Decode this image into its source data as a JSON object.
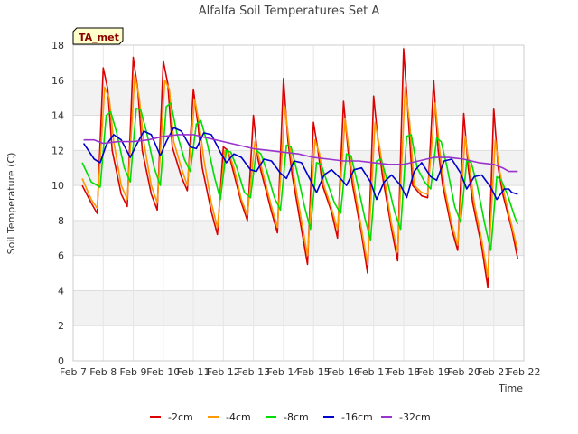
{
  "chart_data": {
    "type": "line",
    "title": "Alfalfa Soil Temperatures Set A",
    "xlabel": "Time",
    "ylabel": "Soil Temperature (C)",
    "site_label": "TA_met",
    "xlim": [
      7,
      22
    ],
    "ylim": [
      0,
      18
    ],
    "x_ticks": [
      7,
      8,
      9,
      10,
      11,
      12,
      13,
      14,
      15,
      16,
      17,
      18,
      19,
      20,
      21,
      22
    ],
    "x_tick_labels": [
      "Feb 7",
      "Feb 8",
      "Feb 9",
      "Feb 10",
      "Feb 11",
      "Feb 12",
      "Feb 13",
      "Feb 14",
      "Feb 15",
      "Feb 16",
      "Feb 17",
      "Feb 18",
      "Feb 19",
      "Feb 20",
      "Feb 21",
      "Feb 22"
    ],
    "y_ticks": [
      0,
      2,
      4,
      6,
      8,
      10,
      12,
      14,
      16,
      18
    ],
    "y_tick_labels": [
      "0",
      "2",
      "4",
      "6",
      "8",
      "10",
      "12",
      "14",
      "16",
      "18"
    ],
    "grid": true,
    "legend_position": "bottom",
    "series": [
      {
        "name": "-2cm",
        "color": "#dd0000",
        "x": [
          7.3,
          7.6,
          7.8,
          8.0,
          8.15,
          8.3,
          8.6,
          8.8,
          9.0,
          9.15,
          9.3,
          9.6,
          9.8,
          10.0,
          10.15,
          10.3,
          10.6,
          10.8,
          11.0,
          11.15,
          11.3,
          11.6,
          11.8,
          12.0,
          12.15,
          12.3,
          12.6,
          12.8,
          13.0,
          13.15,
          13.3,
          13.6,
          13.8,
          14.0,
          14.15,
          14.3,
          14.6,
          14.8,
          15.0,
          15.15,
          15.3,
          15.6,
          15.8,
          16.0,
          16.15,
          16.3,
          16.6,
          16.8,
          17.0,
          17.15,
          17.3,
          17.6,
          17.8,
          18.0,
          18.15,
          18.3,
          18.6,
          18.8,
          19.0,
          19.15,
          19.3,
          19.6,
          19.8,
          20.0,
          20.15,
          20.3,
          20.6,
          20.8,
          21.0,
          21.15,
          21.3,
          21.6,
          21.8
        ],
        "y": [
          10.0,
          9.0,
          8.4,
          16.7,
          15.5,
          12.0,
          9.5,
          8.8,
          17.3,
          15.5,
          12.0,
          9.5,
          8.6,
          17.1,
          15.8,
          12.2,
          10.5,
          9.7,
          15.5,
          13.5,
          11.0,
          8.5,
          7.2,
          12.2,
          12.0,
          11.0,
          9.0,
          8.0,
          14.0,
          11.5,
          10.5,
          8.5,
          7.3,
          16.1,
          12.5,
          10.5,
          7.5,
          5.5,
          13.6,
          12.0,
          10.0,
          8.5,
          7.0,
          14.8,
          12.0,
          10.0,
          7.2,
          5.0,
          15.1,
          12.5,
          10.5,
          7.5,
          5.7,
          17.8,
          14.0,
          10.0,
          9.4,
          9.3,
          16.0,
          12.0,
          10.0,
          7.5,
          6.3,
          14.1,
          11.0,
          9.0,
          6.5,
          4.2,
          14.4,
          11.0,
          9.5,
          7.5,
          5.8
        ]
      },
      {
        "name": "-4cm",
        "color": "#ff9900",
        "x": [
          7.3,
          7.6,
          7.8,
          8.05,
          8.2,
          8.35,
          8.6,
          8.8,
          9.05,
          9.2,
          9.35,
          9.6,
          9.8,
          10.05,
          10.2,
          10.35,
          10.6,
          10.8,
          11.05,
          11.2,
          11.35,
          11.6,
          11.8,
          12.05,
          12.2,
          12.35,
          12.6,
          12.8,
          13.05,
          13.2,
          13.35,
          13.6,
          13.8,
          14.05,
          14.2,
          14.35,
          14.6,
          14.8,
          15.05,
          15.2,
          15.35,
          15.6,
          15.8,
          16.05,
          16.2,
          16.35,
          16.6,
          16.8,
          17.05,
          17.2,
          17.35,
          17.6,
          17.8,
          18.05,
          18.2,
          18.35,
          18.6,
          18.8,
          19.05,
          19.2,
          19.35,
          19.6,
          19.8,
          20.05,
          20.2,
          20.35,
          20.6,
          20.8,
          21.05,
          21.2,
          21.35,
          21.6,
          21.8
        ],
        "y": [
          10.4,
          9.2,
          8.7,
          15.6,
          15.0,
          12.5,
          10.0,
          9.2,
          16.3,
          15.0,
          12.5,
          10.0,
          9.0,
          16.0,
          15.5,
          12.5,
          11.0,
          10.0,
          14.9,
          13.5,
          11.5,
          9.0,
          7.6,
          12.0,
          11.8,
          11.0,
          9.2,
          8.3,
          12.5,
          11.5,
          10.5,
          8.8,
          7.6,
          14.5,
          12.3,
          10.5,
          8.0,
          6.0,
          12.6,
          11.8,
          10.0,
          8.7,
          7.5,
          13.8,
          11.8,
          10.0,
          7.5,
          5.5,
          13.6,
          12.2,
          10.5,
          7.8,
          6.2,
          15.6,
          13.6,
          10.0,
          9.6,
          9.5,
          14.7,
          12.0,
          10.0,
          7.8,
          6.6,
          12.8,
          11.0,
          9.0,
          6.9,
          4.8,
          12.6,
          10.8,
          9.5,
          7.7,
          6.3
        ]
      },
      {
        "name": "-8cm",
        "color": "#00dd00",
        "x": [
          7.3,
          7.6,
          7.9,
          8.1,
          8.25,
          8.45,
          8.7,
          8.9,
          9.1,
          9.25,
          9.45,
          9.7,
          9.9,
          10.1,
          10.25,
          10.45,
          10.7,
          10.9,
          11.1,
          11.25,
          11.45,
          11.7,
          11.9,
          12.1,
          12.25,
          12.45,
          12.7,
          12.9,
          13.1,
          13.25,
          13.45,
          13.7,
          13.9,
          14.1,
          14.25,
          14.45,
          14.7,
          14.9,
          15.1,
          15.25,
          15.45,
          15.7,
          15.9,
          16.1,
          16.25,
          16.45,
          16.7,
          16.9,
          17.1,
          17.25,
          17.45,
          17.7,
          17.9,
          18.1,
          18.25,
          18.45,
          18.7,
          18.9,
          19.1,
          19.25,
          19.45,
          19.7,
          19.9,
          20.1,
          20.25,
          20.45,
          20.7,
          20.9,
          21.1,
          21.25,
          21.45,
          21.7,
          21.8
        ],
        "y": [
          11.3,
          10.2,
          9.9,
          14.0,
          14.2,
          13.0,
          11.0,
          10.2,
          14.4,
          14.3,
          13.0,
          11.0,
          10.0,
          14.5,
          14.7,
          13.0,
          11.5,
          10.8,
          13.5,
          13.7,
          12.5,
          10.5,
          9.2,
          12.0,
          11.9,
          11.0,
          9.6,
          9.3,
          12.0,
          11.8,
          10.8,
          9.3,
          8.6,
          12.3,
          12.2,
          10.8,
          8.8,
          7.5,
          11.3,
          11.2,
          10.2,
          9.0,
          8.4,
          11.8,
          11.7,
          10.2,
          8.2,
          6.9,
          11.4,
          11.5,
          10.3,
          8.5,
          7.5,
          12.8,
          12.9,
          11.0,
          10.2,
          9.8,
          12.7,
          12.5,
          11.0,
          8.8,
          7.9,
          11.4,
          11.3,
          10.0,
          7.8,
          6.3,
          10.5,
          10.3,
          9.5,
          8.2,
          7.8
        ]
      },
      {
        "name": "-16cm",
        "color": "#0000cc",
        "x": [
          7.35,
          7.7,
          7.9,
          8.1,
          8.35,
          8.6,
          8.9,
          9.1,
          9.35,
          9.6,
          9.9,
          10.1,
          10.35,
          10.6,
          10.9,
          11.1,
          11.35,
          11.6,
          11.9,
          12.1,
          12.35,
          12.6,
          12.9,
          13.1,
          13.35,
          13.6,
          13.9,
          14.1,
          14.35,
          14.6,
          14.9,
          15.1,
          15.35,
          15.6,
          15.9,
          16.1,
          16.35,
          16.6,
          16.9,
          17.1,
          17.35,
          17.6,
          17.9,
          18.1,
          18.35,
          18.6,
          18.9,
          19.1,
          19.35,
          19.6,
          19.9,
          20.1,
          20.35,
          20.6,
          20.9,
          21.1,
          21.35,
          21.5,
          21.6,
          21.8
        ],
        "y": [
          12.4,
          11.5,
          11.3,
          12.3,
          12.9,
          12.6,
          11.6,
          12.3,
          13.1,
          12.9,
          11.7,
          12.5,
          13.3,
          13.1,
          12.2,
          12.1,
          13.0,
          12.9,
          11.9,
          11.3,
          11.8,
          11.6,
          10.9,
          10.8,
          11.5,
          11.4,
          10.7,
          10.4,
          11.4,
          11.3,
          10.3,
          9.6,
          10.6,
          10.9,
          10.4,
          10.0,
          10.9,
          11.0,
          10.2,
          9.2,
          10.2,
          10.6,
          10.0,
          9.3,
          10.8,
          11.3,
          10.5,
          10.3,
          11.4,
          11.5,
          10.7,
          9.8,
          10.5,
          10.6,
          9.9,
          9.2,
          9.8,
          9.8,
          9.6,
          9.5
        ]
      },
      {
        "name": "-32cm",
        "color": "#9933cc",
        "x": [
          7.35,
          7.7,
          8.0,
          8.5,
          9.0,
          9.5,
          10.0,
          10.5,
          11.0,
          11.5,
          12.0,
          12.5,
          13.0,
          13.5,
          14.0,
          14.5,
          15.0,
          15.5,
          16.0,
          16.5,
          17.0,
          17.5,
          18.0,
          18.5,
          19.0,
          19.5,
          20.0,
          20.5,
          21.0,
          21.3,
          21.5,
          21.8
        ],
        "y": [
          12.6,
          12.6,
          12.4,
          12.5,
          12.5,
          12.6,
          12.8,
          12.9,
          12.9,
          12.7,
          12.5,
          12.3,
          12.1,
          12.0,
          11.9,
          11.8,
          11.6,
          11.5,
          11.4,
          11.4,
          11.3,
          11.2,
          11.2,
          11.4,
          11.6,
          11.6,
          11.5,
          11.3,
          11.2,
          11.0,
          10.8,
          10.8
        ]
      }
    ]
  }
}
